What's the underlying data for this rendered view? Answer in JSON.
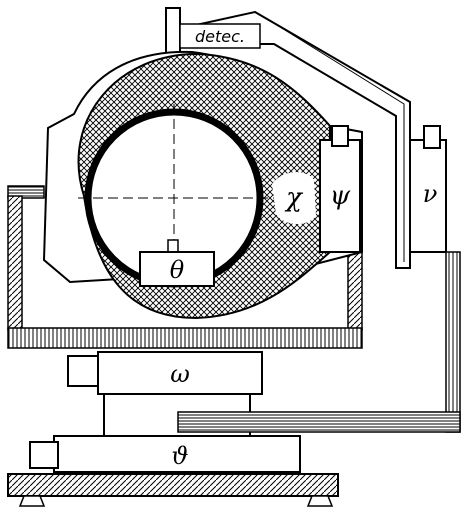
{
  "labels": {
    "detector": "detec.",
    "chi": "χ",
    "psi": "ψ",
    "nu": "ν",
    "theta": "θ",
    "omega": "ω",
    "vartheta": "ϑ"
  },
  "colors": {
    "ink": "#000000",
    "paper": "#ffffff"
  }
}
